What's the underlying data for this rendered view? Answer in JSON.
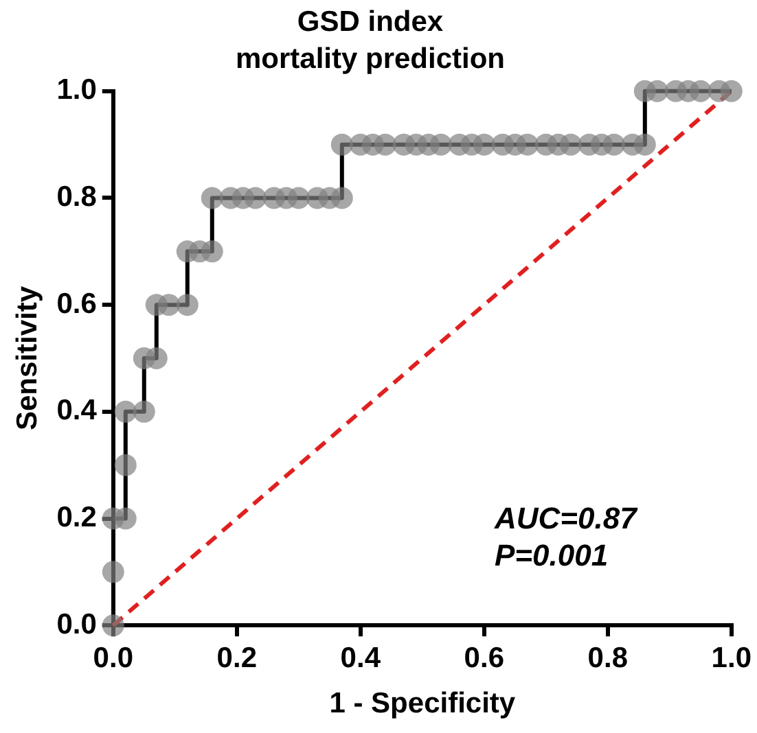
{
  "chart_data": {
    "type": "line",
    "title": "GSD index",
    "subtitle": "mortality prediction",
    "xlabel": "1 - Specificity",
    "ylabel": "Sensitivity",
    "xlim": [
      0,
      1
    ],
    "ylim": [
      0,
      1
    ],
    "xticks": [
      {
        "value": 0,
        "label": "0.0"
      },
      {
        "value": 0.2,
        "label": "0.2"
      },
      {
        "value": 0.4,
        "label": "0.4"
      },
      {
        "value": 0.6,
        "label": "0.6"
      },
      {
        "value": 0.8,
        "label": "0.8"
      },
      {
        "value": 1,
        "label": "1.0"
      }
    ],
    "yticks": [
      {
        "value": 0,
        "label": "0.0"
      },
      {
        "value": 0.2,
        "label": "0.2"
      },
      {
        "value": 0.4,
        "label": "0.4"
      },
      {
        "value": 0.6,
        "label": "0.6"
      },
      {
        "value": 0.8,
        "label": "0.8"
      },
      {
        "value": 1,
        "label": "1.0"
      }
    ],
    "grid": false,
    "legend": false,
    "annotations": [
      "AUC=0.87",
      "P=0.001"
    ],
    "series": [
      {
        "type": "scatter",
        "color": "#808080",
        "marker": "circle",
        "x": [
          0,
          0,
          0,
          0.02,
          0.02,
          0.02,
          0.05,
          0.05,
          0.07,
          0.07,
          0.09,
          0.12,
          0.12,
          0.14,
          0.16,
          0.16,
          0.19,
          0.21,
          0.23,
          0.26,
          0.28,
          0.3,
          0.33,
          0.35,
          0.37,
          0.37,
          0.4,
          0.42,
          0.44,
          0.47,
          0.49,
          0.51,
          0.53,
          0.56,
          0.58,
          0.6,
          0.63,
          0.65,
          0.67,
          0.7,
          0.72,
          0.74,
          0.77,
          0.79,
          0.81,
          0.84,
          0.86,
          0.86,
          0.88,
          0.91,
          0.93,
          0.95,
          0.98,
          1
        ],
        "values": [
          0,
          0.1,
          0.2,
          0.2,
          0.3,
          0.4,
          0.4,
          0.5,
          0.5,
          0.6,
          0.6,
          0.6,
          0.7,
          0.7,
          0.7,
          0.8,
          0.8,
          0.8,
          0.8,
          0.8,
          0.8,
          0.8,
          0.8,
          0.8,
          0.8,
          0.9,
          0.9,
          0.9,
          0.9,
          0.9,
          0.9,
          0.9,
          0.9,
          0.9,
          0.9,
          0.9,
          0.9,
          0.9,
          0.9,
          0.9,
          0.9,
          0.9,
          0.9,
          0.9,
          0.9,
          0.9,
          0.9,
          1,
          1,
          1,
          1,
          1,
          1,
          1
        ]
      },
      {
        "type": "step",
        "color": "#000000",
        "marker": "none",
        "line_style": "solid",
        "x": [
          0,
          0.02,
          0.02,
          0.05,
          0.05,
          0.07,
          0.07,
          0.12,
          0.12,
          0.16,
          0.16,
          0.37,
          0.37,
          0.86,
          0.86,
          1
        ],
        "values": [
          0.2,
          0.2,
          0.4,
          0.4,
          0.5,
          0.5,
          0.6,
          0.6,
          0.7,
          0.7,
          0.8,
          0.8,
          0.9,
          0.9,
          1,
          1
        ]
      },
      {
        "type": "line",
        "color": "#e02020",
        "marker": "none",
        "line_style": "dashed",
        "x": [
          0,
          1
        ],
        "values": [
          0,
          1
        ]
      }
    ]
  }
}
